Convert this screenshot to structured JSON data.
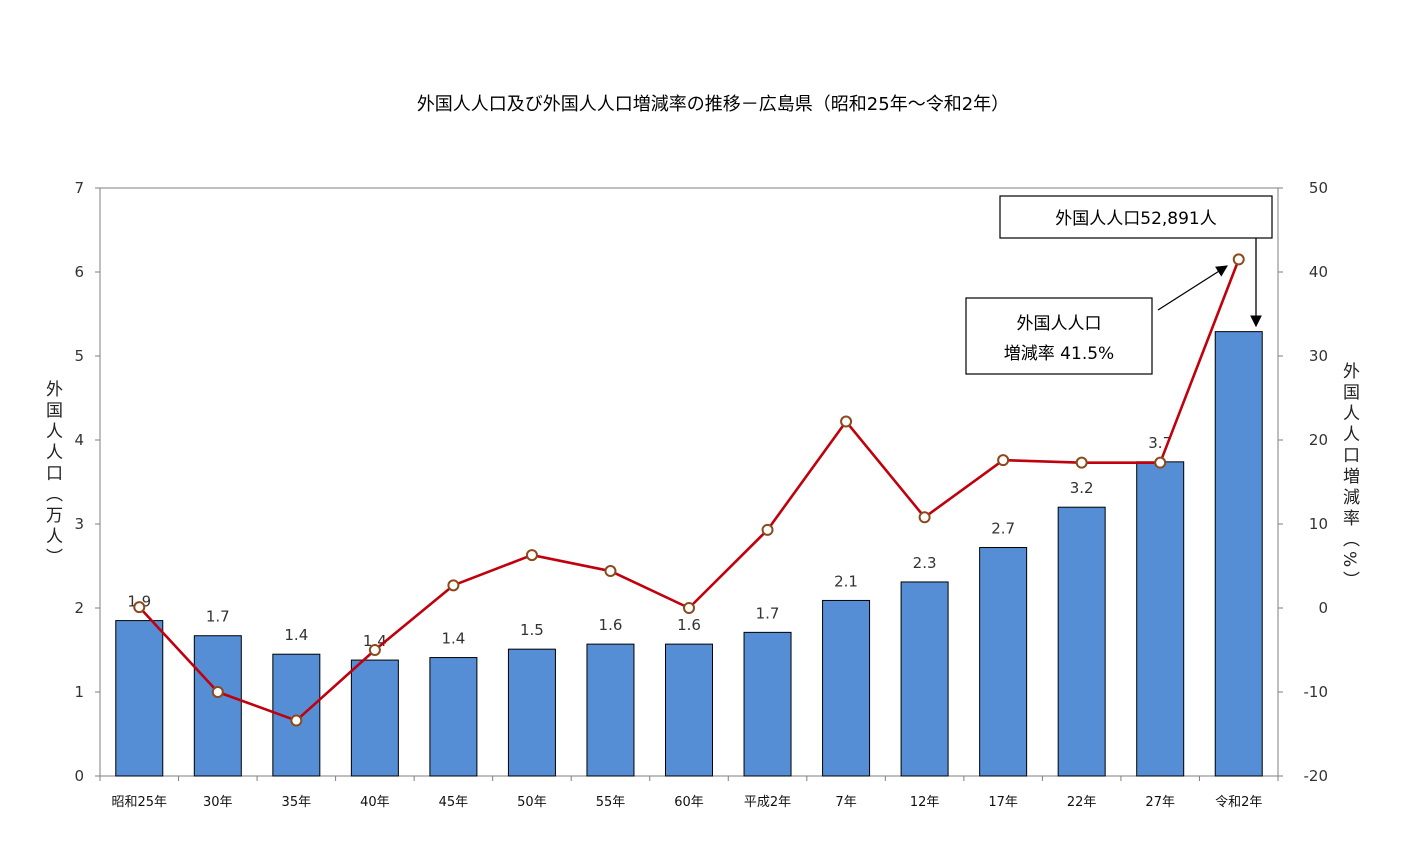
{
  "chart_data": {
    "type": "bar",
    "title": "外国人人口及び外国人人口増減率の推移－広島県（昭和25年～令和2年）",
    "categories": [
      "昭和25年",
      "30年",
      "35年",
      "40年",
      "45年",
      "50年",
      "55年",
      "60年",
      "平成2年",
      "7年",
      "12年",
      "17年",
      "22年",
      "27年",
      "令和2年"
    ],
    "series": [
      {
        "type": "bar",
        "axis": "left",
        "color": "#558ED5",
        "values": [
          1.85,
          1.67,
          1.45,
          1.38,
          1.41,
          1.51,
          1.57,
          1.57,
          1.71,
          2.09,
          2.31,
          2.72,
          3.2,
          3.74,
          5.29
        ],
        "labels": [
          "1.9",
          "1.7",
          "1.4",
          "1.4",
          "1.4",
          "1.5",
          "1.6",
          "1.6",
          "1.7",
          "2.1",
          "2.3",
          "2.7",
          "3.2",
          "3.7",
          ""
        ]
      },
      {
        "type": "line",
        "axis": "right",
        "color": "#C0000D",
        "marker_color": "#8B4A1C",
        "values": [
          0.1,
          -10.0,
          -13.4,
          -5.0,
          2.7,
          6.3,
          4.4,
          0.0,
          9.3,
          22.2,
          10.8,
          17.6,
          17.3,
          17.3,
          41.5
        ]
      }
    ],
    "ylabel_left": "外国人人口（万人）",
    "ylabel_right": "外国人人口増減率（%）",
    "ylim_left": [
      0,
      7
    ],
    "yticks_left": [
      "0",
      "1",
      "2",
      "3",
      "4",
      "5",
      "6",
      "7"
    ],
    "ylim_right": [
      -20,
      50
    ],
    "yticks_right": [
      "-20",
      "-10",
      "0",
      "10",
      "20",
      "30",
      "40",
      "50"
    ],
    "grid": false,
    "annotations": {
      "population": "外国人人口52,891人",
      "rate_line1": "外国人人口",
      "rate_line2": "増減率 41.5%"
    }
  }
}
